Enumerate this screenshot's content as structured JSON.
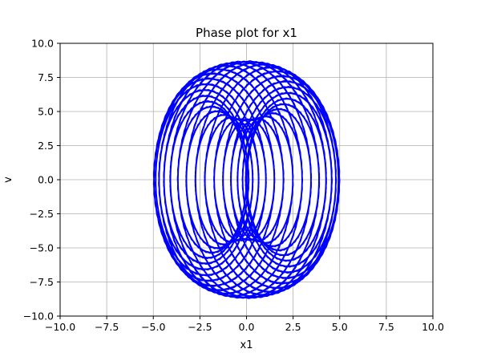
{
  "chart_data": {
    "type": "line",
    "title": "Phase plot for x1",
    "xlabel": "x1",
    "ylabel": "v",
    "xlim": [
      -10,
      10
    ],
    "ylim": [
      -10,
      10
    ],
    "xticks": [
      "−10.0",
      "−7.5",
      "−5.0",
      "−2.5",
      "0.0",
      "2.5",
      "5.0",
      "7.5",
      "10.0"
    ],
    "xtick_values": [
      -10,
      -7.5,
      -5,
      -2.5,
      0,
      2.5,
      5,
      7.5,
      10
    ],
    "yticks": [
      "−10.0",
      "−7.5",
      "−5.0",
      "−2.5",
      "0.0",
      "2.5",
      "5.0",
      "7.5",
      "10.0"
    ],
    "ytick_values": [
      -10,
      -7.5,
      -5,
      -2.5,
      0,
      2.5,
      5,
      7.5,
      10
    ],
    "grid": true,
    "series": [
      {
        "color": "#0000ff",
        "description_model": "x1 = 2.5*cos(t) + 2.5*cos(3.1*t), v = -(2.5*sin(t) + 7.75*sin(3.1*t))*0.85"
      }
    ]
  }
}
